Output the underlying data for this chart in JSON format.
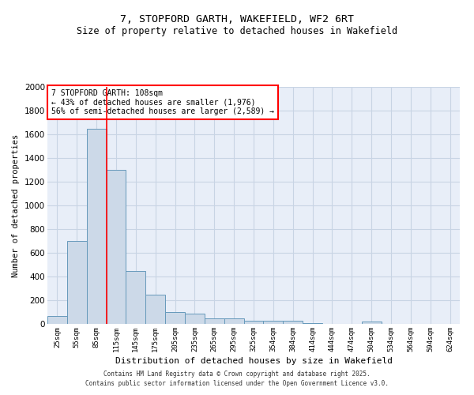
{
  "title_line1": "7, STOPFORD GARTH, WAKEFIELD, WF2 6RT",
  "title_line2": "Size of property relative to detached houses in Wakefield",
  "xlabel": "Distribution of detached houses by size in Wakefield",
  "ylabel": "Number of detached properties",
  "categories": [
    "25sqm",
    "55sqm",
    "85sqm",
    "115sqm",
    "145sqm",
    "175sqm",
    "205sqm",
    "235sqm",
    "265sqm",
    "295sqm",
    "325sqm",
    "354sqm",
    "384sqm",
    "414sqm",
    "444sqm",
    "474sqm",
    "504sqm",
    "534sqm",
    "564sqm",
    "594sqm",
    "624sqm"
  ],
  "values": [
    65,
    700,
    1650,
    1300,
    450,
    250,
    100,
    90,
    50,
    50,
    30,
    25,
    25,
    5,
    0,
    0,
    20,
    0,
    0,
    0,
    0
  ],
  "bar_color": "#ccd9e8",
  "bar_edge_color": "#6699bb",
  "red_line_x": 2.5,
  "annotation_title": "7 STOPFORD GARTH: 108sqm",
  "annotation_line2": "← 43% of detached houses are smaller (1,976)",
  "annotation_line3": "56% of semi-detached houses are larger (2,589) →",
  "ylim": [
    0,
    2000
  ],
  "yticks": [
    0,
    200,
    400,
    600,
    800,
    1000,
    1200,
    1400,
    1600,
    1800,
    2000
  ],
  "grid_color": "#c8d4e4",
  "background_color": "#e8eef8",
  "footnote_line1": "Contains HM Land Registry data © Crown copyright and database right 2025.",
  "footnote_line2": "Contains public sector information licensed under the Open Government Licence v3.0."
}
